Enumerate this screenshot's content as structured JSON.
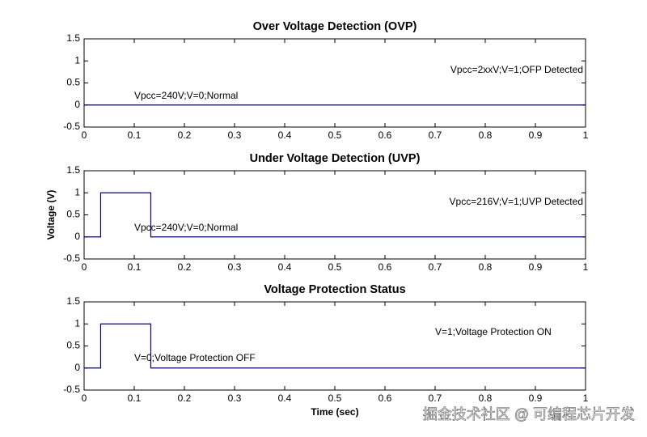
{
  "chart_data": [
    {
      "type": "line",
      "title": "Over Voltage Detection (OVP)",
      "x": [
        0,
        1
      ],
      "values": [
        0,
        0
      ],
      "color": "#00007f",
      "xlim": [
        0,
        1
      ],
      "xticks": [
        0,
        0.1,
        0.2,
        0.3,
        0.4,
        0.5,
        0.6,
        0.7,
        0.8,
        0.9,
        1
      ],
      "ylim": [
        -0.5,
        1.5
      ],
      "yticks": [
        -0.5,
        0,
        0.5,
        1,
        1.5
      ],
      "annotations": [
        "Vpcc=2xxV;V=1;OFP Detected",
        "Vpcc=240V;V=0;Normal"
      ]
    },
    {
      "type": "line",
      "title": "Under Voltage Detection (UVP)",
      "y_label": "Voltage (V)",
      "x": [
        0,
        0.033,
        0.033,
        0.133,
        0.133,
        1
      ],
      "values": [
        0,
        0,
        1,
        1,
        0,
        0
      ],
      "color": "#00007f",
      "xlim": [
        0,
        1
      ],
      "xticks": [
        0,
        0.1,
        0.2,
        0.3,
        0.4,
        0.5,
        0.6,
        0.7,
        0.8,
        0.9,
        1
      ],
      "ylim": [
        -0.5,
        1.5
      ],
      "yticks": [
        -0.5,
        0,
        0.5,
        1,
        1.5
      ],
      "annotations": [
        "Vpcc=216V;V=1;UVP Detected",
        "Vpcc=240V;V=0;Normal"
      ]
    },
    {
      "type": "line",
      "title": "Voltage Protection Status",
      "x_label": "Time (sec)",
      "x": [
        0,
        0.033,
        0.033,
        0.133,
        0.133,
        1
      ],
      "values": [
        0,
        0,
        1,
        1,
        0,
        0
      ],
      "color": "#00007f",
      "xlim": [
        0,
        1
      ],
      "xticks": [
        0,
        0.1,
        0.2,
        0.3,
        0.4,
        0.5,
        0.6,
        0.7,
        0.8,
        0.9,
        1
      ],
      "ylim": [
        -0.5,
        1.5
      ],
      "yticks": [
        -0.5,
        0,
        0.5,
        1,
        1.5
      ],
      "annotations": [
        "V=1;Voltage Protection ON",
        "V=0;Voltage Protection OFF"
      ]
    }
  ],
  "watermark": "掘金技术社区 @ 可编程芯片开发"
}
